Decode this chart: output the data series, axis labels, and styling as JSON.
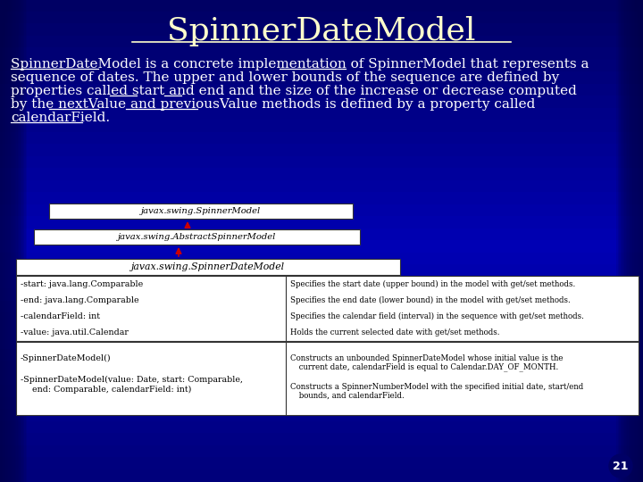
{
  "title": "SpinnerDateModel",
  "bg_color_top": "#000090",
  "bg_color_mid": "#0000CC",
  "bg_color_bot": "#000080",
  "title_color": "#FFFFCC",
  "title_fontsize": 26,
  "body_text_color": "#FFFFFF",
  "body_fontsize": 11.0,
  "underlined_words": [
    "SpinnerDateModel",
    "SpinnerModel",
    "start",
    "end",
    "nextValue",
    "previousValue",
    "calendarField"
  ],
  "box1_label": "javax.swing.SpinnerModel",
  "box2_label": "javax.swing.AbstractSpinnerModel",
  "box3_label": "javax.swing.SpinnerDateModel",
  "fields": [
    "-start: java.lang.Comparable",
    "-end: java.lang.Comparable",
    "-calendarField: int",
    "-value: java.util.Calendar"
  ],
  "methods_line1": "-SpinnerDateModel()",
  "methods_line2": "-SpinnerDateModel(value: Date, start: Comparable,",
  "methods_line3": "  end: Comparable, calendarField: int)",
  "right_f1": "Specifies the start date (upper bound) in the model with get/set methods.",
  "right_f2": "Specifies the end date (lower bound) in the model with get/set methods.",
  "right_f3": "Specifies the calendar field (interval) in the sequence with get/set methods.",
  "right_f4": "Holds the current selected date with get/set methods.",
  "right_m1a": "Constructs an unbounded SpinnerDateModel whose initial value is the",
  "right_m1b": " current date, calendarField is equal to Calendar.DAY_OF_MONTH.",
  "right_m2a": "Constructs a SpinnerNumberModel with the specified initial date, start/end",
  "right_m2b": " bounds, and calendarField.",
  "page_num": "21",
  "arrow_color": "#CC0000",
  "box_fill": "#FFFFFF",
  "box_text_color": "#000000"
}
